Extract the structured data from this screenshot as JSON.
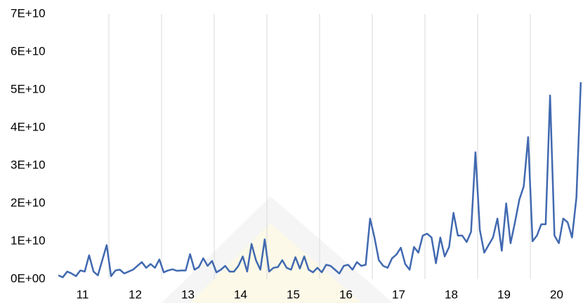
{
  "chart_data": {
    "type": "line",
    "categories": [
      null,
      null,
      null,
      null,
      null,
      null,
      "11",
      null,
      null,
      null,
      null,
      null,
      null,
      null,
      null,
      null,
      null,
      null,
      "12",
      null,
      null,
      null,
      null,
      null,
      null,
      null,
      null,
      null,
      null,
      null,
      "13",
      null,
      null,
      null,
      null,
      null,
      null,
      null,
      null,
      null,
      null,
      null,
      "14",
      null,
      null,
      null,
      null,
      null,
      null,
      null,
      null,
      null,
      null,
      null,
      "15",
      null,
      null,
      null,
      null,
      null,
      null,
      null,
      null,
      null,
      null,
      null,
      "16",
      null,
      null,
      null,
      null,
      null,
      null,
      null,
      null,
      null,
      null,
      null,
      "17",
      null,
      null,
      null,
      null,
      null,
      null,
      null,
      null,
      null,
      null,
      null,
      "18",
      null,
      null,
      null,
      null,
      null,
      null,
      null,
      null,
      null,
      null,
      null,
      "19",
      null,
      null,
      null,
      null,
      null,
      null,
      null,
      null,
      null,
      null,
      null,
      "20",
      null,
      null,
      null,
      null,
      null
    ],
    "series": [
      {
        "color": "#4169b0",
        "values": [
          1000000000.0,
          500000000.0,
          2000000000.0,
          1500000000.0,
          800000000.0,
          2300000000.0,
          2000000000.0,
          6300000000.0,
          2000000000.0,
          1000000000.0,
          5000000000.0,
          9000000000.0,
          800000000.0,
          2300000000.0,
          2500000000.0,
          1500000000.0,
          2000000000.0,
          2500000000.0,
          3500000000.0,
          4500000000.0,
          3000000000.0,
          4000000000.0,
          3000000000.0,
          5200000000.0,
          1800000000.0,
          2300000000.0,
          2600000000.0,
          2200000000.0,
          2300000000.0,
          2300000000.0,
          6600000000.0,
          2500000000.0,
          3200000000.0,
          5500000000.0,
          3500000000.0,
          4800000000.0,
          1800000000.0,
          2500000000.0,
          3500000000.0,
          2000000000.0,
          2000000000.0,
          3500000000.0,
          6000000000.0,
          2000000000.0,
          9300000000.0,
          5000000000.0,
          2500000000.0,
          10500000000.0,
          2000000000.0,
          3000000000.0,
          3200000000.0,
          5000000000.0,
          3000000000.0,
          2500000000.0,
          5800000000.0,
          2800000000.0,
          6000000000.0,
          2500000000.0,
          1800000000.0,
          3000000000.0,
          1800000000.0,
          3800000000.0,
          3500000000.0,
          2500000000.0,
          1500000000.0,
          3500000000.0,
          3800000000.0,
          2500000000.0,
          4500000000.0,
          3500000000.0,
          3800000000.0,
          16000000000.0,
          11000000000.0,
          5000000000.0,
          3500000000.0,
          3000000000.0,
          5500000000.0,
          6500000000.0,
          8300000000.0,
          4000000000.0,
          2500000000.0,
          8500000000.0,
          7000000000.0,
          11500000000.0,
          12000000000.0,
          11000000000.0,
          4200000000.0,
          11000000000.0,
          6000000000.0,
          8500000000.0,
          17500000000.0,
          11500000000.0,
          11500000000.0,
          9800000000.0,
          12500000000.0,
          33500000000.0,
          13000000000.0,
          7000000000.0,
          9000000000.0,
          11000000000.0,
          16000000000.0,
          7500000000.0,
          20000000000.0,
          9500000000.0,
          15000000000.0,
          21000000000.0,
          24500000000.0,
          37500000000.0,
          10000000000.0,
          11500000000.0,
          14500000000.0,
          14500000000.0,
          48500000000.0,
          11500000000.0,
          9500000000.0,
          16000000000.0,
          15000000000.0,
          11000000000.0,
          21500000000.0,
          52000000000.0
        ]
      }
    ],
    "ylim": [
      0,
      70000000000.0
    ],
    "yticks": [
      {
        "value": 0,
        "label": "0E+00"
      },
      {
        "value": 10000000000.0,
        "label": "1E+10"
      },
      {
        "value": 20000000000.0,
        "label": "2E+10"
      },
      {
        "value": 30000000000.0,
        "label": "3E+10"
      },
      {
        "value": 40000000000.0,
        "label": "4E+10"
      },
      {
        "value": 50000000000.0,
        "label": "5E+10"
      },
      {
        "value": 60000000000.0,
        "label": "6E+10"
      },
      {
        "value": 70000000000.0,
        "label": "7E+10"
      }
    ],
    "grid": true
  }
}
